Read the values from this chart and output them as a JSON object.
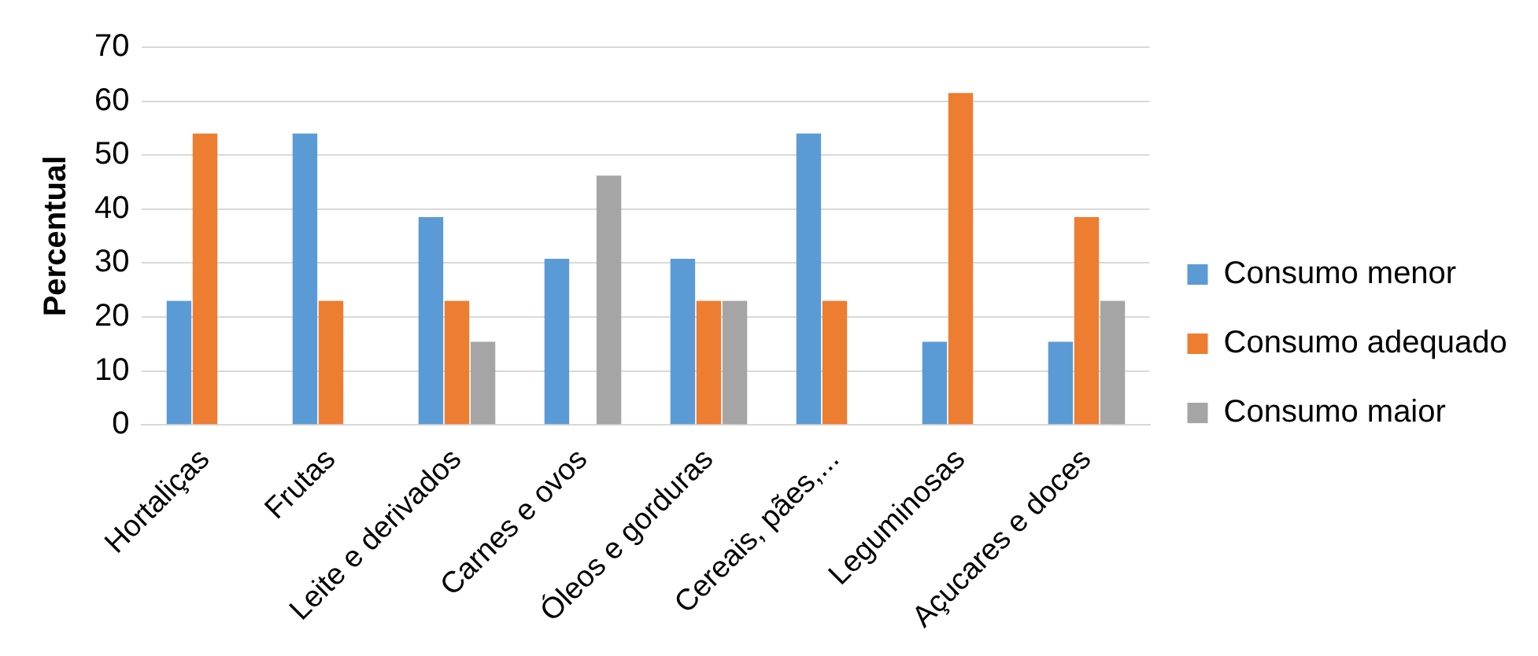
{
  "chart_data": {
    "type": "bar",
    "ylabel": "Percentual",
    "categories": [
      "Hortaliças",
      "Frutas",
      "Leite e derivados",
      "Carnes e ovos",
      "Óleos e gorduras",
      "Cereais, pães,...",
      "Leguminosas",
      "Açucares e doces"
    ],
    "series": [
      {
        "name": "Consumo menor",
        "color": "#5b9bd5",
        "values": [
          23,
          54,
          38.5,
          30.8,
          30.8,
          54,
          15.4,
          15.4
        ]
      },
      {
        "name": "Consumo adequado",
        "color": "#ed7d31",
        "values": [
          54,
          23,
          23,
          0,
          23,
          23,
          61.5,
          38.5
        ]
      },
      {
        "name": "Consumo maior",
        "color": "#a5a5a5",
        "values": [
          0,
          0,
          15.4,
          46.2,
          23,
          0,
          0,
          23
        ]
      }
    ],
    "ylim": [
      0,
      70
    ],
    "yticks": [
      0,
      10,
      20,
      30,
      40,
      50,
      60,
      70
    ],
    "grid": "y",
    "legend": "right"
  }
}
